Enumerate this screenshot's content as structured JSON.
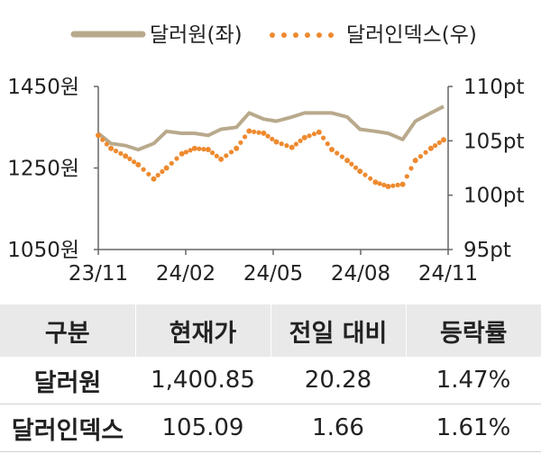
{
  "chart_data": {
    "type": "line",
    "legend_position": "top",
    "x_ticks": [
      "23/11",
      "24/02",
      "24/05",
      "24/08",
      "24/11"
    ],
    "y_left": {
      "ticks": [
        "1450원",
        "1250원",
        "1050원"
      ],
      "tick_values": [
        1450,
        1250,
        1050
      ],
      "range": [
        1050,
        1450
      ]
    },
    "y_right": {
      "ticks": [
        "110pt",
        "105pt",
        "100pt",
        "95pt"
      ],
      "tick_values": [
        110,
        105,
        100,
        95
      ],
      "range": [
        95,
        110
      ]
    },
    "grid": false,
    "series": [
      {
        "name": "달러원(좌)",
        "axis": "left",
        "style": "solid",
        "color": "#b9a98c",
        "x": [
          "2023-11-01",
          "2023-11-15",
          "2023-12-01",
          "2023-12-15",
          "2024-01-01",
          "2024-01-15",
          "2024-02-01",
          "2024-02-15",
          "2024-03-01",
          "2024-03-15",
          "2024-04-01",
          "2024-04-15",
          "2024-05-01",
          "2024-05-15",
          "2024-06-01",
          "2024-06-15",
          "2024-07-01",
          "2024-07-15",
          "2024-08-01",
          "2024-08-15",
          "2024-09-01",
          "2024-09-15",
          "2024-10-01",
          "2024-10-15",
          "2024-11-01",
          "2024-11-15"
        ],
        "values": [
          1335,
          1310,
          1305,
          1295,
          1310,
          1340,
          1335,
          1335,
          1330,
          1345,
          1350,
          1385,
          1370,
          1365,
          1375,
          1385,
          1385,
          1385,
          1375,
          1345,
          1340,
          1335,
          1320,
          1365,
          1385,
          1400.85
        ]
      },
      {
        "name": "달러인덱스(우)",
        "axis": "right",
        "style": "dotted",
        "color": "#ee8a2f",
        "x": [
          "2023-11-01",
          "2023-11-15",
          "2023-12-01",
          "2023-12-15",
          "2024-01-01",
          "2024-01-15",
          "2024-02-01",
          "2024-02-15",
          "2024-03-01",
          "2024-03-15",
          "2024-04-01",
          "2024-04-15",
          "2024-05-01",
          "2024-05-15",
          "2024-06-01",
          "2024-06-15",
          "2024-07-01",
          "2024-07-15",
          "2024-08-01",
          "2024-08-15",
          "2024-09-01",
          "2024-09-15",
          "2024-10-01",
          "2024-10-15",
          "2024-11-01",
          "2024-11-15"
        ],
        "values": [
          105.5,
          104.3,
          103.6,
          102.8,
          101.5,
          102.5,
          103.8,
          104.3,
          104.2,
          103.3,
          104.3,
          105.9,
          105.7,
          104.9,
          104.4,
          105.3,
          105.8,
          104.2,
          103.2,
          102.2,
          101.2,
          100.8,
          101.0,
          103.2,
          104.3,
          105.09
        ]
      }
    ]
  },
  "table": {
    "headers": [
      "구분",
      "현재가",
      "전일 대비",
      "등락률"
    ],
    "rows": [
      [
        "달러원",
        "1,400.85",
        "20.28",
        "1.47%"
      ],
      [
        "달러인덱스",
        "105.09",
        "1.66",
        "1.61%"
      ]
    ]
  }
}
